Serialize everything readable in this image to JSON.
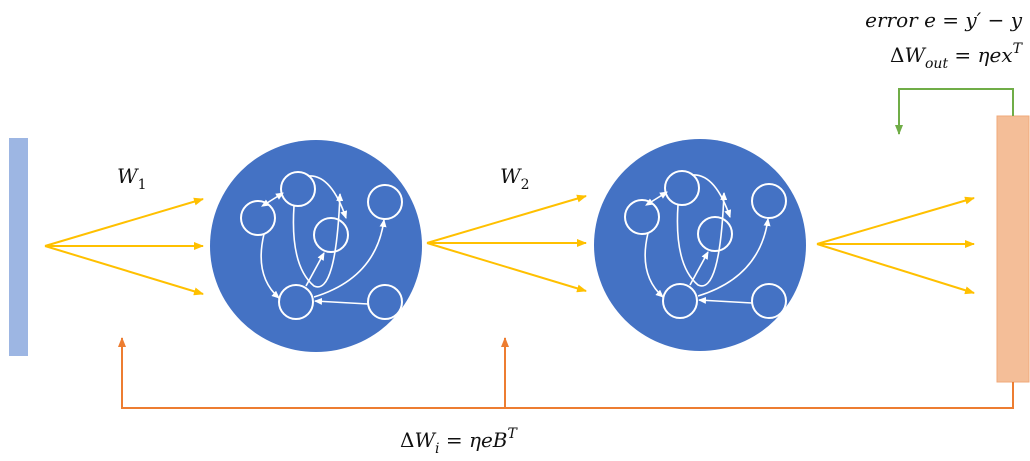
{
  "labels": {
    "w1_base": "W",
    "w1_sub": "1",
    "w2_base": "W",
    "w2_sub": "2",
    "error_line": "error e =  y′ − y",
    "dw_out_delta": "Δ",
    "dw_out_base": "W",
    "dw_out_sub": "out",
    "dw_out_rhs": " = ηex",
    "dw_out_sup": "T",
    "dw_i_delta": "Δ",
    "dw_i_base": "W",
    "dw_i_sub": "i",
    "dw_i_rhs": " = ηeB",
    "dw_i_sup": "T"
  },
  "colors": {
    "input_layer": "#9DB6E3",
    "output_layer": "#F4BE98",
    "output_layer_border": "#F0A97A",
    "reservoir": "#4472C4",
    "weights_arrow": "#FFC000",
    "feedback_arrow": "#ED7D31",
    "error_arrow": "#70AD47",
    "node_stroke": "#ffffff"
  }
}
